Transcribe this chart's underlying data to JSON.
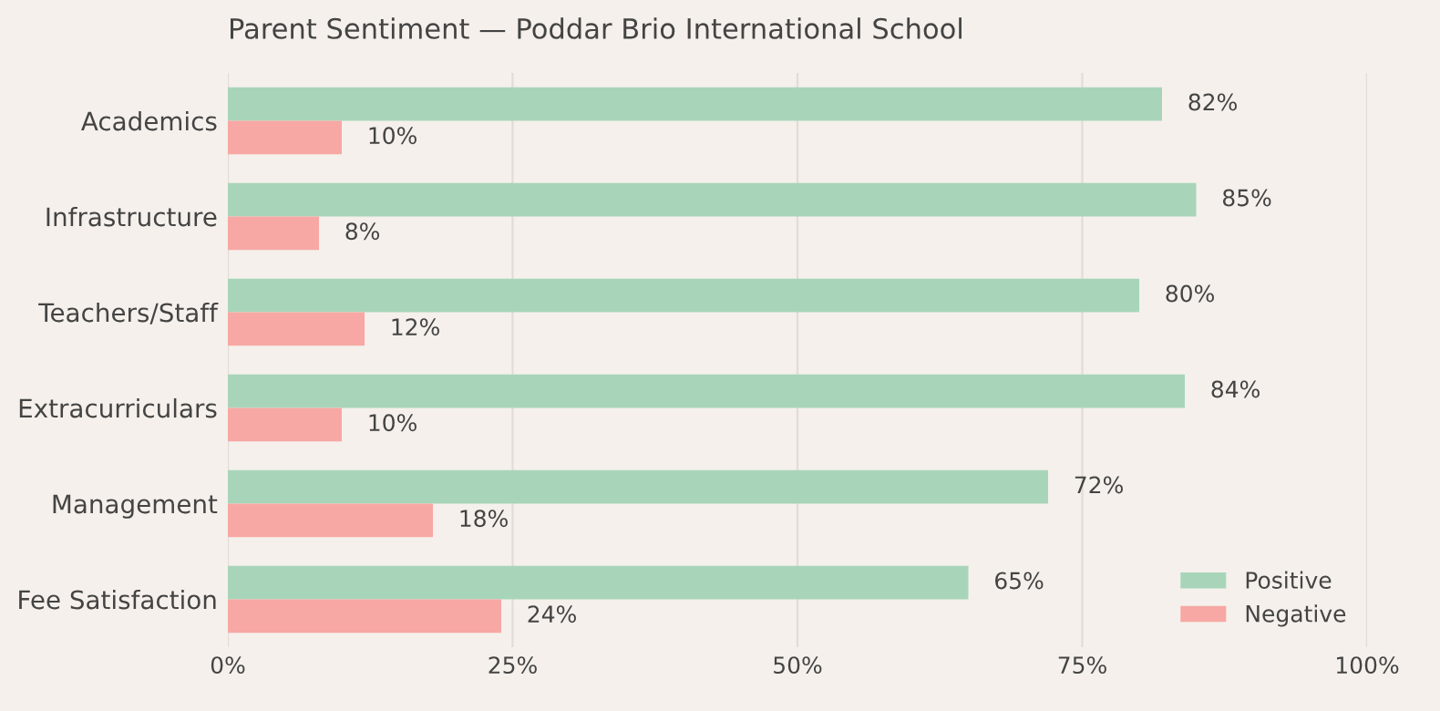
{
  "chart_data": {
    "type": "bar",
    "orientation": "horizontal",
    "title": "Parent Sentiment — Poddar Brio International School",
    "categories": [
      "Academics",
      "Infrastructure",
      "Teachers/Staff",
      "Extracurriculars",
      "Management",
      "Fee Satisfaction"
    ],
    "series": [
      {
        "name": "Positive",
        "color": "#a8d5ba",
        "values": [
          82,
          85,
          80,
          84,
          72,
          65
        ],
        "value_labels": [
          "82%",
          "85%",
          "80%",
          "84%",
          "72%",
          "65%"
        ]
      },
      {
        "name": "Negative",
        "color": "#f7a8a4",
        "values": [
          10,
          8,
          12,
          10,
          18,
          24
        ],
        "value_labels": [
          "10%",
          "8%",
          "12%",
          "10%",
          "18%",
          "24%"
        ]
      }
    ],
    "xlim": [
      0,
      100
    ],
    "xticks": [
      {
        "value": 0,
        "label": "0%"
      },
      {
        "value": 25,
        "label": "25%"
      },
      {
        "value": 50,
        "label": "50%"
      },
      {
        "value": 75,
        "label": "75%"
      },
      {
        "value": 100,
        "label": "100%"
      }
    ],
    "grid": "x",
    "legend": "bottom right"
  }
}
